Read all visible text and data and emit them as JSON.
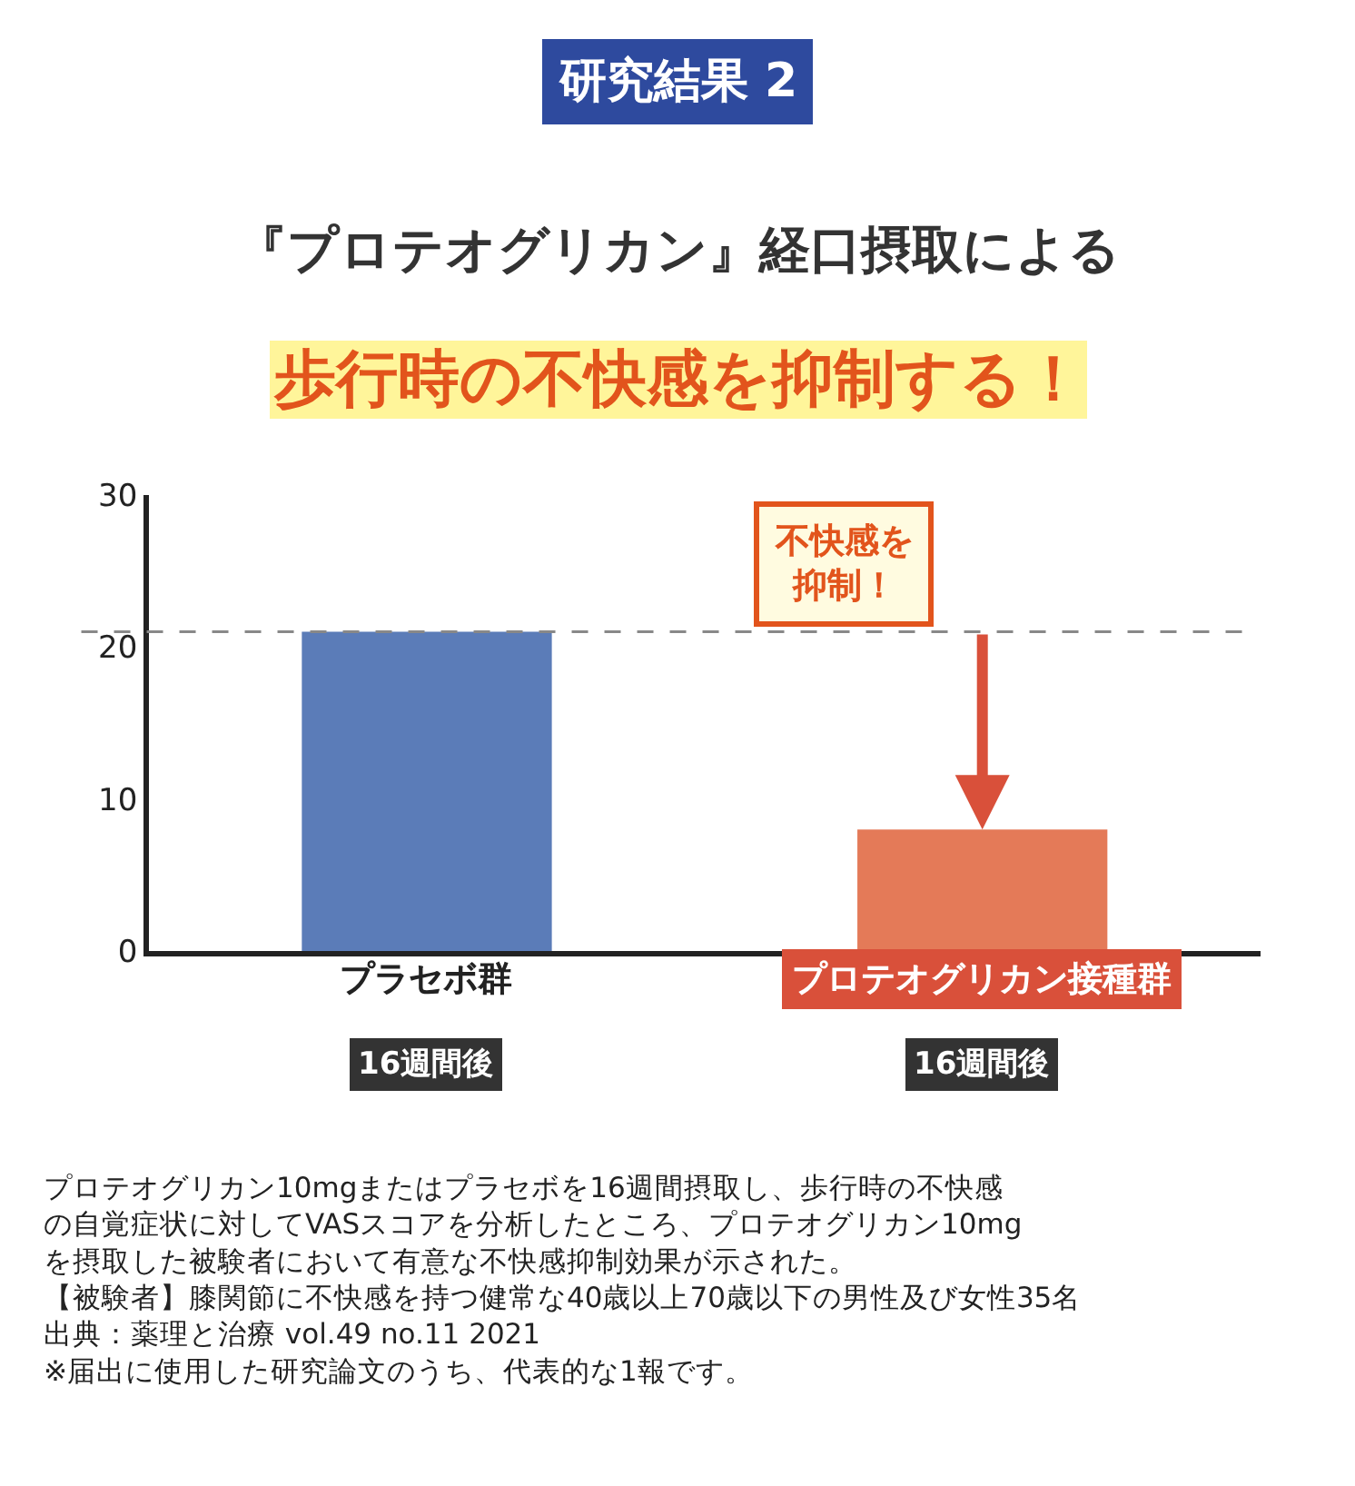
{
  "chart_data": {
    "type": "bar",
    "title": "研究結果 2",
    "subtitle": "『プロテオグリカン』経口摂取による",
    "categories": [
      "プラセボ群",
      "プロテオグリカン接種群"
    ],
    "values": [
      21,
      8
    ],
    "colors": [
      "#5b7cb8",
      "#e47a58"
    ],
    "ylim": [
      0,
      30
    ],
    "yticks": [
      0,
      10,
      20,
      30
    ],
    "legend": false,
    "ref_lines": [
      {
        "axis": "y",
        "value": 21,
        "color": "#888888",
        "line_style": "dashed"
      }
    ],
    "annotations": [
      "歩行時の不快感を抑制する！",
      "16週間後",
      "16週間後",
      "不快感を抑制！",
      "プロテオグリカン10mgまたはプラセボを16週間摂取し、歩行時の不快感の自覚症状に対してVASスコアを分析したところ、プロテオグリカン10mgを摂取した被験者において有意な不快感抑制効果が示された。",
      "【被験者】膝関節に不快感を持つ健常な40歳以上70歳以下の男性及び女性35名",
      "出典：薬理と治療 vol.49 no.11 2021",
      "※届出に使用した研究論文のうち、代表的な1報です。"
    ]
  }
}
